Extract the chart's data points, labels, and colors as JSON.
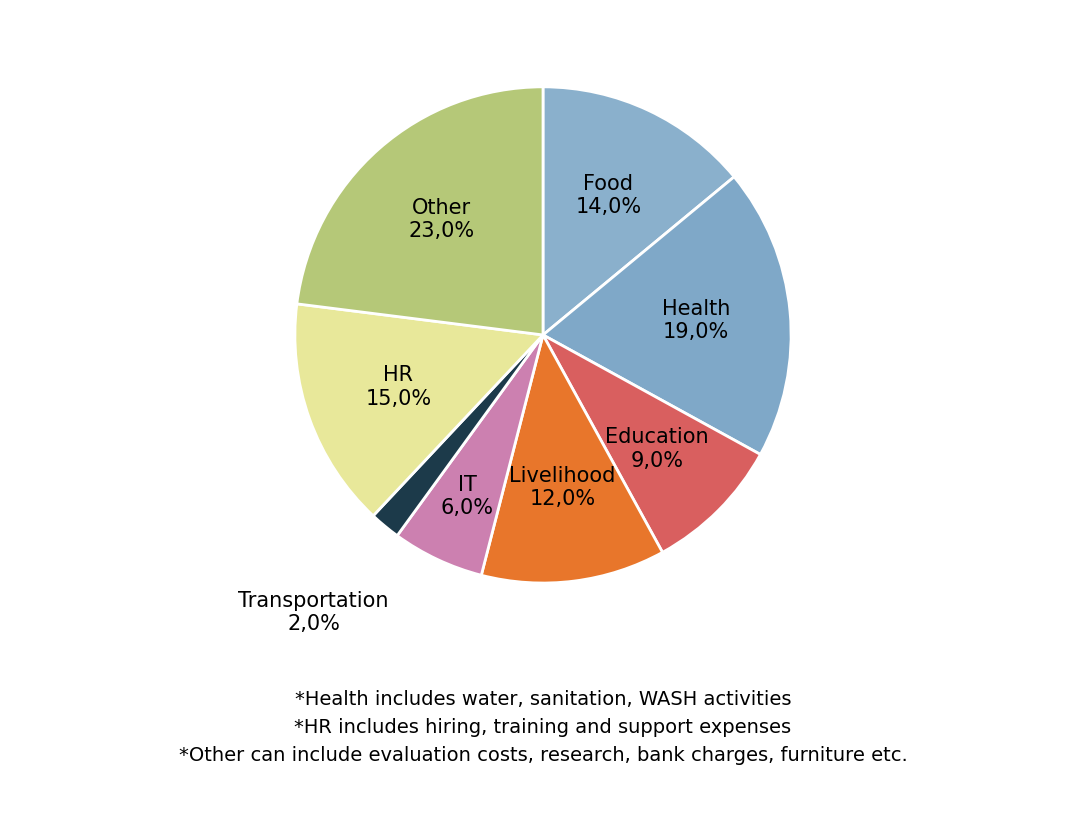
{
  "labels": [
    "Food",
    "Health",
    "Education",
    "Livelihood",
    "IT",
    "Transportation",
    "HR",
    "Other"
  ],
  "values": [
    14.0,
    19.0,
    9.0,
    12.0,
    6.0,
    2.0,
    15.0,
    23.0
  ],
  "colors": [
    "#8ab0cc",
    "#7fa8c8",
    "#d95f5f",
    "#e8762b",
    "#cc80b0",
    "#1c3a4a",
    "#e8e89a",
    "#b5c878"
  ],
  "label_texts": [
    "Food\n14,0%",
    "Health\n19,0%",
    "Education\n9,0%",
    "Livelihood\n12,0%",
    "IT\n6,0%",
    "Transportation\n2,0%",
    "HR\n15,0%",
    "Other\n23,0%"
  ],
  "footnotes": [
    "*Health includes water, sanitation, WASH activities",
    "*HR includes hiring, training and support expenses",
    "*Other can include evaluation costs, research, bank charges, furniture etc."
  ],
  "startangle": 90,
  "fontsize_label": 15,
  "fontsize_footnote": 14,
  "label_radius": [
    0.62,
    0.62,
    0.65,
    0.62,
    0.72,
    1.45,
    0.62,
    0.62
  ],
  "outside_label": [
    false,
    false,
    false,
    false,
    false,
    true,
    false,
    false
  ]
}
